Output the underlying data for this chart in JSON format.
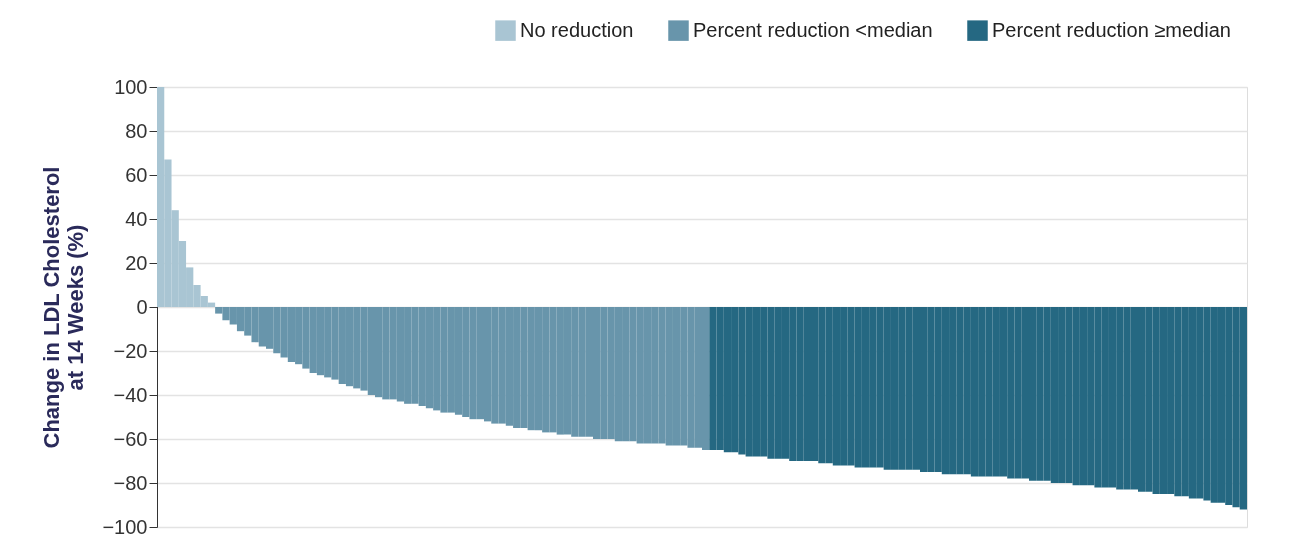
{
  "chart_data": {
    "type": "bar",
    "ylabel": "Change in LDL Cholesterol\nat 14 Weeks (%)",
    "categories": [
      null,
      null,
      null,
      null,
      null,
      null,
      null,
      null,
      null,
      null,
      null,
      null,
      null,
      null,
      null,
      null,
      null,
      null,
      null,
      null,
      null,
      null,
      null,
      null,
      null,
      null,
      null,
      null,
      null,
      null,
      null,
      null,
      null,
      null,
      null,
      null,
      null,
      null,
      null,
      null,
      null,
      null,
      null,
      null,
      null,
      null,
      null,
      null,
      null,
      null,
      null,
      null,
      null,
      null,
      null,
      null,
      null,
      null,
      null,
      null,
      null,
      null,
      null,
      null,
      null,
      null,
      null,
      null,
      null,
      null,
      null,
      null,
      null,
      null,
      null,
      null,
      null,
      null,
      null,
      null,
      null,
      null,
      null,
      null,
      null,
      null,
      null,
      null,
      null,
      null,
      null,
      null,
      null,
      null,
      null,
      null,
      null,
      null,
      null,
      null,
      null,
      null,
      null,
      null,
      null,
      null,
      null,
      null,
      null,
      null,
      null,
      null,
      null,
      null,
      null,
      null,
      null,
      null,
      null,
      null,
      null,
      null,
      null,
      null,
      null,
      null,
      null,
      null,
      null,
      null,
      null,
      null,
      null,
      null,
      null,
      null,
      null,
      null,
      null,
      null,
      null,
      null,
      null,
      null,
      null,
      null,
      null,
      null,
      null,
      null
    ],
    "series": [
      {
        "name": "No reduction",
        "color": "#a9c5d3",
        "values": [
          100,
          67,
          44,
          30,
          18,
          10,
          5,
          2,
          null,
          null,
          null,
          null,
          null,
          null,
          null,
          null,
          null,
          null,
          null,
          null,
          null,
          null,
          null,
          null,
          null,
          null,
          null,
          null,
          null,
          null,
          null,
          null,
          null,
          null,
          null,
          null,
          null,
          null,
          null,
          null,
          null,
          null,
          null,
          null,
          null,
          null,
          null,
          null,
          null,
          null,
          null,
          null,
          null,
          null,
          null,
          null,
          null,
          null,
          null,
          null,
          null,
          null,
          null,
          null,
          null,
          null,
          null,
          null,
          null,
          null,
          null,
          null,
          null,
          null,
          null,
          null,
          null,
          null,
          null,
          null,
          null,
          null,
          null,
          null,
          null,
          null,
          null,
          null,
          null,
          null,
          null,
          null,
          null,
          null,
          null,
          null,
          null,
          null,
          null,
          null,
          null,
          null,
          null,
          null,
          null,
          null,
          null,
          null,
          null,
          null,
          null,
          null,
          null,
          null,
          null,
          null,
          null,
          null,
          null,
          null,
          null,
          null,
          null,
          null,
          null,
          null,
          null,
          null,
          null,
          null,
          null,
          null,
          null,
          null,
          null,
          null,
          null,
          null,
          null,
          null,
          null,
          null,
          null,
          null,
          null,
          null,
          null,
          null,
          null,
          null
        ]
      },
      {
        "name": "Percent reduction <median",
        "color": "#6895ab",
        "values": [
          null,
          null,
          null,
          null,
          null,
          null,
          null,
          null,
          -3,
          -6,
          -8,
          -11,
          -13,
          -16,
          -18,
          -19,
          -21,
          -23,
          -25,
          -26,
          -28,
          -30,
          -31,
          -32,
          -33,
          -35,
          -36,
          -37,
          -38,
          -40,
          -41,
          -42,
          -42,
          -43,
          -44,
          -44,
          -45,
          -46,
          -47,
          -48,
          -48,
          -49,
          -50,
          -51,
          -51,
          -52,
          -53,
          -53,
          -54,
          -55,
          -55,
          -56,
          -56,
          -57,
          -57,
          -58,
          -58,
          -59,
          -59,
          -59,
          -60,
          -60,
          -60,
          -61,
          -61,
          -61,
          -62,
          -62,
          -62,
          -62,
          -63,
          -63,
          -63,
          -64,
          -64,
          -65,
          null,
          null,
          null,
          null,
          null,
          null,
          null,
          null,
          null,
          null,
          null,
          null,
          null,
          null,
          null,
          null,
          null,
          null,
          null,
          null,
          null,
          null,
          null,
          null,
          null,
          null,
          null,
          null,
          null,
          null,
          null,
          null,
          null,
          null,
          null,
          null,
          null,
          null,
          null,
          null,
          null,
          null,
          null,
          null,
          null,
          null,
          null,
          null,
          null,
          null,
          null,
          null,
          null,
          null,
          null,
          null,
          null,
          null,
          null,
          null,
          null,
          null,
          null,
          null,
          null,
          null,
          null,
          null,
          null,
          null,
          null,
          null,
          null,
          null
        ]
      },
      {
        "name": "Percent reduction ≥median",
        "color": "#256882",
        "values": [
          null,
          null,
          null,
          null,
          null,
          null,
          null,
          null,
          null,
          null,
          null,
          null,
          null,
          null,
          null,
          null,
          null,
          null,
          null,
          null,
          null,
          null,
          null,
          null,
          null,
          null,
          null,
          null,
          null,
          null,
          null,
          null,
          null,
          null,
          null,
          null,
          null,
          null,
          null,
          null,
          null,
          null,
          null,
          null,
          null,
          null,
          null,
          null,
          null,
          null,
          null,
          null,
          null,
          null,
          null,
          null,
          null,
          null,
          null,
          null,
          null,
          null,
          null,
          null,
          null,
          null,
          null,
          null,
          null,
          null,
          null,
          null,
          null,
          null,
          null,
          null,
          -65,
          -65,
          -66,
          -66,
          -67,
          -68,
          -68,
          -68,
          -69,
          -69,
          -69,
          -70,
          -70,
          -70,
          -70,
          -71,
          -71,
          -72,
          -72,
          -72,
          -73,
          -73,
          -73,
          -73,
          -74,
          -74,
          -74,
          -74,
          -74,
          -75,
          -75,
          -75,
          -76,
          -76,
          -76,
          -76,
          -77,
          -77,
          -77,
          -77,
          -77,
          -78,
          -78,
          -78,
          -79,
          -79,
          -79,
          -80,
          -80,
          -80,
          -81,
          -81,
          -81,
          -82,
          -82,
          -82,
          -83,
          -83,
          -83,
          -84,
          -84,
          -85,
          -85,
          -85,
          -86,
          -86,
          -87,
          -87,
          -88,
          -89,
          -89,
          -90,
          -91,
          -92
        ]
      }
    ],
    "ylim": [
      -100,
      100
    ],
    "yticks": [
      100,
      80,
      60,
      40,
      20,
      0,
      {
        "value": -20,
        "label": "−20"
      },
      {
        "value": -40,
        "label": "−40"
      },
      {
        "value": -60,
        "label": "−60"
      },
      {
        "value": -80,
        "label": "−80"
      },
      {
        "value": -100,
        "label": "−100"
      }
    ],
    "grid": "y",
    "legend": "top right",
    "tick_labels": "y"
  }
}
